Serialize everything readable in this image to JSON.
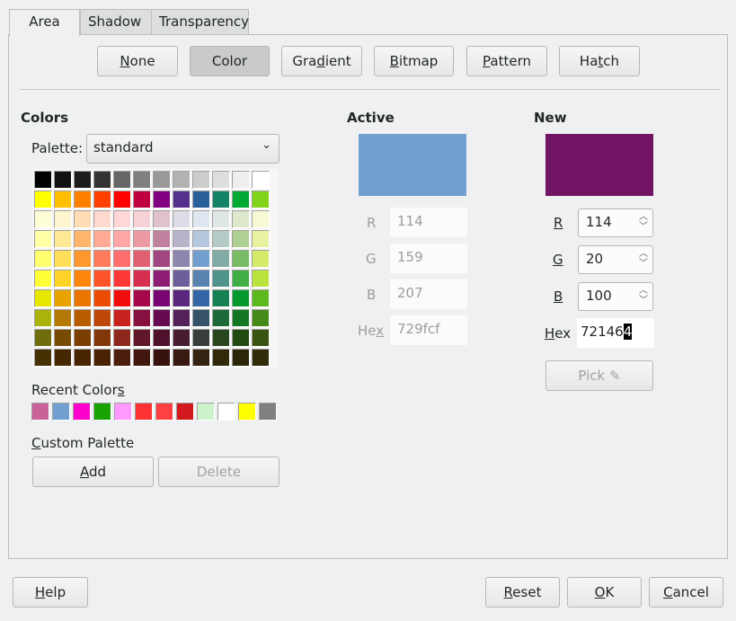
{
  "tabs": [
    "Area",
    "Shadow",
    "Transparency"
  ],
  "fill_buttons": [
    {
      "label": "None",
      "u": "N"
    },
    {
      "label": "Color",
      "u": ""
    },
    {
      "label": "Gradient",
      "u": "d"
    },
    {
      "label": "Bitmap",
      "u": "B"
    },
    {
      "label": "Pattern",
      "u": "P"
    },
    {
      "label": "Hatch",
      "u": "t"
    }
  ],
  "colors": {
    "heading": "Colors",
    "palette_label": "Palette:",
    "palette_value": "standard",
    "recent_label": "Recent Colors",
    "custom_label": "Custom Palette",
    "add": "Add",
    "delete": "Delete"
  },
  "palette": [
    [
      "#000000",
      "#111111",
      "#1c1c1c",
      "#333333",
      "#666666",
      "#808080",
      "#999999",
      "#b2b2b2",
      "#cccccc",
      "#dddddd",
      "#eeeeee",
      "#ffffff"
    ],
    [
      "#ffff00",
      "#ffbf00",
      "#ff8000",
      "#ff4000",
      "#ff0000",
      "#bf0041",
      "#800080",
      "#55308d",
      "#2a6099",
      "#158466",
      "#00a933",
      "#81d41a"
    ],
    [
      "#ffffd7",
      "#fff5ce",
      "#ffdbb6",
      "#ffd8ce",
      "#ffd7d7",
      "#f7d1d5",
      "#e0c2cd",
      "#dedce6",
      "#dee6ef",
      "#dee7e5",
      "#dde8cb",
      "#f6f9d4"
    ],
    [
      "#ffffa6",
      "#ffe994",
      "#ffb66c",
      "#ffaa95",
      "#ffa6a6",
      "#ec9ba4",
      "#bf819e",
      "#b7b3ca",
      "#b4c7dc",
      "#b3cac7",
      "#afd095",
      "#e8f2a1"
    ],
    [
      "#ffff6d",
      "#ffde59",
      "#ff972f",
      "#ff7b59",
      "#ff6d6d",
      "#e16173",
      "#a1467e",
      "#8e86ae",
      "#729fcf",
      "#81aca6",
      "#77bc65",
      "#d4ea6b"
    ],
    [
      "#ffff38",
      "#ffd428",
      "#ff860d",
      "#ff5429",
      "#ff3838",
      "#d62e4e",
      "#8d1d75",
      "#6b5e9b",
      "#5983b0",
      "#50938a",
      "#3faf46",
      "#bbe33d"
    ],
    [
      "#e6e600",
      "#e8a202",
      "#ea7500",
      "#ed4c05",
      "#f10d0c",
      "#a7074b",
      "#780373",
      "#5b277d",
      "#3465a4",
      "#168253",
      "#069a2e",
      "#5eb91e"
    ],
    [
      "#acb20c",
      "#b47804",
      "#b85c00",
      "#be480a",
      "#c9211e",
      "#861141",
      "#650953",
      "#55215b",
      "#355269",
      "#1e6a39",
      "#127622",
      "#468a1a"
    ],
    [
      "#706e0c",
      "#784b04",
      "#7b3d00",
      "#813709",
      "#8d281e",
      "#611729",
      "#4e102d",
      "#481d32",
      "#383d3c",
      "#28471f",
      "#224b12",
      "#395511"
    ],
    [
      "#443205",
      "#472702",
      "#482500",
      "#4a2303",
      "#4b1d0e",
      "#42170f",
      "#37120f",
      "#391a10",
      "#342311",
      "#312a0a",
      "#2b2608",
      "#302b08"
    ]
  ],
  "recent": [
    "#c86299",
    "#729fcf",
    "#ff00cc",
    "#18a303",
    "#ff99ff",
    "#ff3333",
    "#ff4040",
    "#d1191e",
    "#ccf2cc",
    "#ffffff",
    "#ffff00",
    "#808080"
  ],
  "active": {
    "heading": "Active",
    "color": "#729fcf",
    "r_label": "R",
    "g_label": "G",
    "b_label": "B",
    "hex_label": "Hex",
    "r": "114",
    "g": "159",
    "b": "207",
    "hex": "729fcf"
  },
  "new": {
    "heading": "New",
    "color": "#721464",
    "r_label": "R",
    "g_label": "G",
    "b_label": "B",
    "hex_label": "Hex",
    "r": "114",
    "g": "20",
    "b": "100",
    "hex_before": "72146",
    "hex_selected": "4",
    "pick": "Pick"
  },
  "footer": {
    "help": "Help",
    "reset": "Reset",
    "ok": "OK",
    "cancel": "Cancel"
  }
}
